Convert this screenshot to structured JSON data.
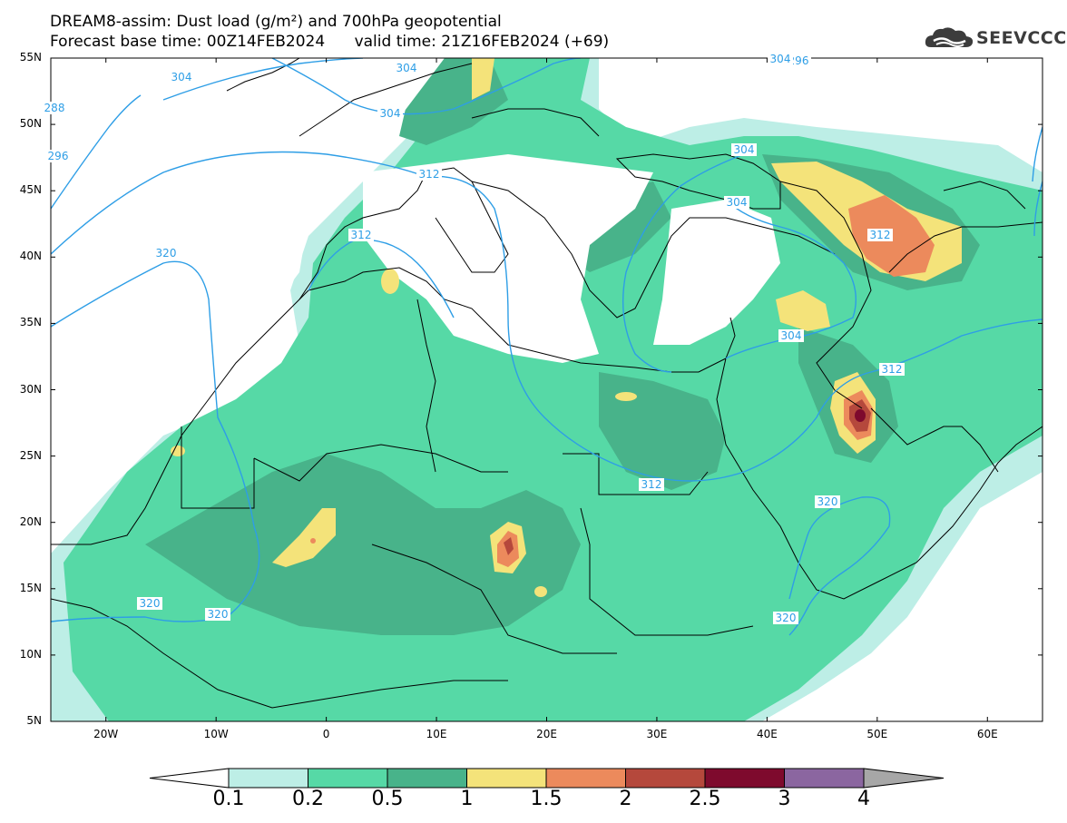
{
  "header": {
    "line1": "DREAM8-assim: Dust load (g/m²) and 700hPa geopotential",
    "line2": "Forecast base time: 00Z14FEB2024      valid time: 21Z16FEB2024 (+69)"
  },
  "logo": {
    "text": "SEEVCCC",
    "icon": "cloud-logo-icon"
  },
  "map": {
    "lon_range": [
      -25,
      65
    ],
    "lat_range": [
      5,
      55
    ],
    "lat_labels": [
      "55N",
      "50N",
      "45N",
      "40N",
      "35N",
      "30N",
      "25N",
      "20N",
      "15N",
      "10N",
      "5N"
    ],
    "lon_labels": [
      "20W",
      "10W",
      "0",
      "10E",
      "20E",
      "30E",
      "40E",
      "50E",
      "60E"
    ],
    "contour_labels": [
      "304",
      "296",
      "288",
      "304",
      "304",
      "296",
      "304",
      "304",
      "312",
      "304",
      "312",
      "320",
      "312",
      "304",
      "312",
      "312",
      "320",
      "320",
      "320",
      "320"
    ],
    "colors": {
      "c0": "#bdeee6",
      "c1": "#56d9a6",
      "c2": "#48b38a",
      "c3": "#f4e37a",
      "c4": "#ec8a5c",
      "c5": "#b5483c",
      "c6": "#7e0a2d",
      "c7": "#8b66a0",
      "c8": "#a7a7a7",
      "contour": "#2e9ee6"
    }
  },
  "colorbar": {
    "labels": [
      "0.1",
      "0.2",
      "0.5",
      "1",
      "1.5",
      "2",
      "2.5",
      "3",
      "4"
    ]
  }
}
